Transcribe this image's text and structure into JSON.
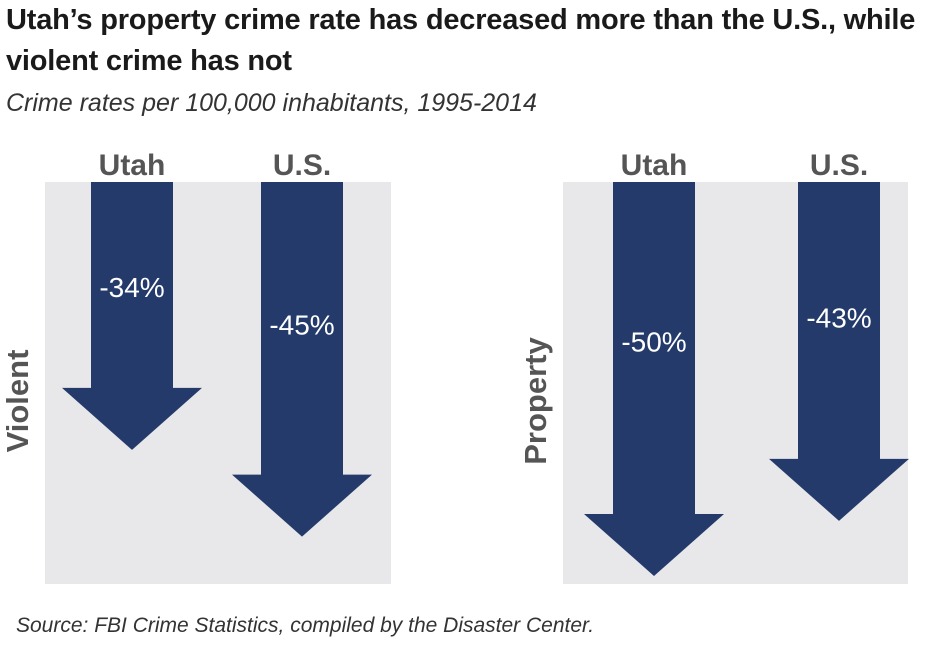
{
  "title": "Utah’s property crime rate has decreased more than the U.S., while violent crime has not",
  "subtitle": "Crime rates per 100,000 inhabitants, 1995-2014",
  "source": "Source: FBI Crime Statistics, compiled by the Disaster Center.",
  "colors": {
    "arrow": "#233a6b",
    "panel": "#e8e8ea",
    "label": "#555555"
  },
  "chart_data": {
    "type": "bar",
    "panels": [
      {
        "name": "Violent",
        "categories": [
          "Utah",
          "U.S."
        ],
        "values": [
          -34,
          -45
        ],
        "labels": [
          "-34%",
          "-45%"
        ]
      },
      {
        "name": "Property",
        "categories": [
          "Utah",
          "U.S."
        ],
        "values": [
          -50,
          -43
        ],
        "labels": [
          "-50%",
          "-43%"
        ]
      }
    ]
  }
}
